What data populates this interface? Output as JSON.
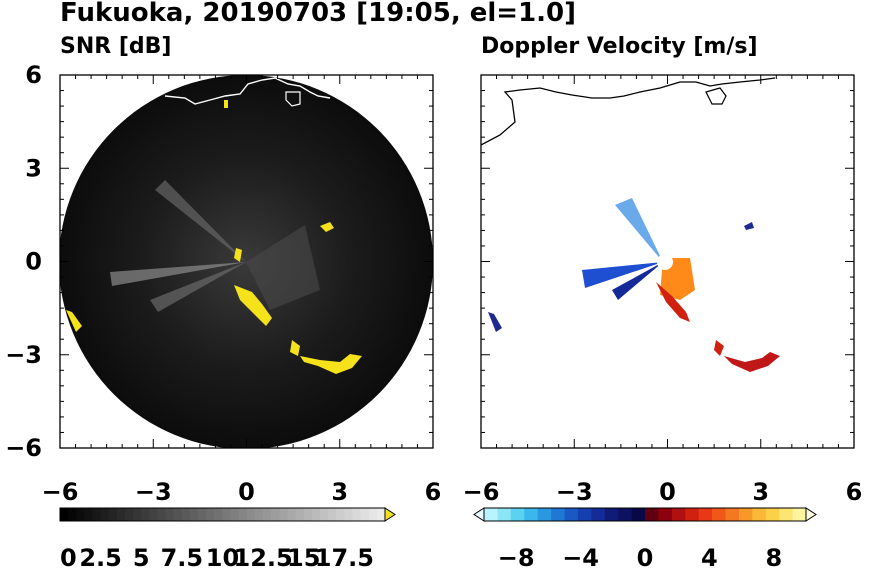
{
  "figure": {
    "title": "Fukuoka, 20190703 [19:05, el=1.0]"
  },
  "colors": {
    "echo_yellow": "#f5e21a",
    "radar_disk": "#101010",
    "coast": "#ffffff",
    "coast_right": "#000000"
  },
  "chart_data": [
    {
      "type": "heatmap",
      "title": "SNR [dB]",
      "xlim": [
        -6,
        6
      ],
      "ylim": [
        -6,
        6
      ],
      "x_ticks": [
        "−6",
        "−3",
        "0",
        "3",
        "6"
      ],
      "y_ticks": [
        "6",
        "3",
        "0",
        "−3",
        "−6"
      ],
      "colorbar": {
        "range": [
          0,
          20
        ],
        "labels": [
          "0",
          "2.5",
          "5",
          "7.5",
          "10",
          "12.5",
          "15",
          "17.5"
        ],
        "extend": "max"
      }
    },
    {
      "type": "heatmap",
      "title": "Doppler Velocity [m/s]",
      "xlim": [
        -6,
        6
      ],
      "ylim": [
        -6,
        6
      ],
      "x_ticks": [
        "−6",
        "−3",
        "0",
        "3",
        "6"
      ],
      "colorbar": {
        "range": [
          -10,
          10
        ],
        "labels": [
          "−8",
          "−4",
          "0",
          "4",
          "8"
        ],
        "extend": "both"
      }
    }
  ]
}
